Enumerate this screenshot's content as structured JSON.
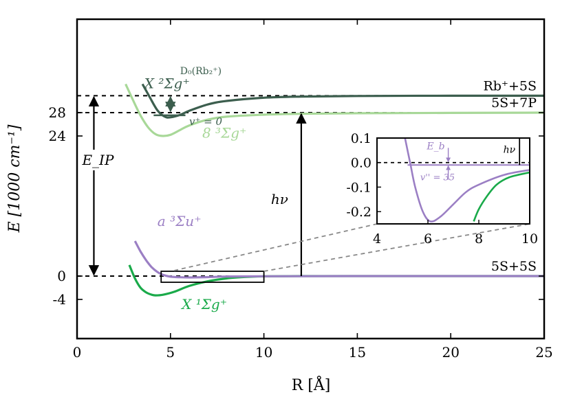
{
  "chart_data": [
    {
      "type": "line",
      "xlabel": "R [Å]",
      "ylabel": "E [1000 cm⁻¹]",
      "xlim": [
        0,
        25
      ],
      "ylim": [
        -4,
        32.5
      ],
      "x_ticks": [
        "0",
        "5",
        "10",
        "15",
        "20",
        "25"
      ],
      "y_ticks": [
        "-4",
        "0",
        "24",
        "28"
      ],
      "grid": false,
      "colors": {
        "X1Sg": "#1aaa4a",
        "a3Su": "#9b7fc4",
        "8_3Sg": "#a8d898",
        "X2Sg_ion": "#3c5e4e",
        "asymptote": "#000000"
      },
      "asymptotes": [
        {
          "label": "5S+5S",
          "y": 0
        },
        {
          "label": "5S+7P",
          "y": 28.0
        },
        {
          "label": "Rb⁺+5S",
          "y": 30.9
        }
      ],
      "series": [
        {
          "name": "X ¹Σg⁺",
          "color_key": "X1Sg",
          "x": [
            2.8,
            3.1,
            3.4,
            3.7,
            4.0,
            4.2,
            4.6,
            5.2,
            6.0,
            7.0,
            8.0,
            9.0,
            10.0,
            12.0,
            15.0,
            20.0,
            25.0
          ],
          "y": [
            1.9,
            -0.4,
            -2.0,
            -2.8,
            -3.2,
            -3.3,
            -3.2,
            -2.7,
            -1.7,
            -0.9,
            -0.4,
            -0.15,
            -0.05,
            0,
            0,
            0,
            0
          ]
        },
        {
          "name": "a ³Σu⁺",
          "color_key": "a3Su",
          "x": [
            3.1,
            3.4,
            3.7,
            4.0,
            4.3,
            4.6,
            5.0,
            5.5,
            6.1,
            7.0,
            8.0,
            10.0,
            15.0,
            25.0
          ],
          "y": [
            6.0,
            4.2,
            2.7,
            1.5,
            0.7,
            0.2,
            -0.1,
            -0.2,
            -0.23,
            -0.18,
            -0.08,
            -0.03,
            0,
            0
          ]
        },
        {
          "name": "8 ³Σg⁺",
          "color_key": "8_3Sg",
          "x": [
            2.6,
            3.0,
            3.4,
            3.8,
            4.2,
            4.6,
            5.0,
            5.5,
            6.0,
            7.0,
            8.0,
            10.0,
            12.0,
            15.0,
            20.0,
            25.0
          ],
          "y": [
            32.9,
            30.1,
            27.5,
            25.5,
            24.3,
            24.0,
            24.2,
            25.0,
            25.8,
            26.8,
            27.3,
            27.65,
            27.8,
            27.9,
            27.95,
            28.0
          ]
        },
        {
          "name": "X ²Σg⁺",
          "color_key": "X2Sg_ion",
          "x": [
            3.5,
            3.9,
            4.3,
            4.7,
            5.0,
            5.5,
            6.0,
            7.0,
            8.0,
            10.0,
            12.0,
            15.0,
            20.0,
            25.0
          ],
          "y": [
            32.9,
            30.6,
            28.4,
            27.3,
            27.2,
            27.6,
            28.3,
            29.4,
            30.0,
            30.55,
            30.75,
            30.85,
            30.9,
            30.9
          ]
        }
      ],
      "annotations": {
        "E_IP": "E_IP",
        "hv": "hν",
        "D0_label": "D₀(Rb₂⁺)",
        "vplus": "v⁺ = 0"
      },
      "zoom_box": {
        "x": [
          4.5,
          10
        ],
        "y": [
          -0.3,
          0.05
        ]
      }
    },
    {
      "type": "line",
      "title": "inset",
      "xlim": [
        4,
        10
      ],
      "ylim": [
        -0.25,
        0.1
      ],
      "x_ticks": [
        "4",
        "6",
        "8",
        "10"
      ],
      "y_ticks": [
        "0.1",
        "0.0",
        "-0.1",
        "-0.2"
      ],
      "series": [
        {
          "name": "a ³Σu⁺",
          "color_key": "a3Su",
          "x": [
            5.1,
            5.3,
            5.5,
            5.8,
            6.1,
            6.5,
            7.0,
            7.5,
            8.0,
            9.0,
            10.0
          ],
          "y": [
            0.1,
            0.0,
            -0.1,
            -0.2,
            -0.24,
            -0.22,
            -0.17,
            -0.12,
            -0.09,
            -0.05,
            -0.03
          ]
        },
        {
          "name": "X ¹Σg⁺",
          "color_key": "X1Sg",
          "x": [
            7.8,
            8.0,
            8.3,
            8.7,
            9.2,
            10.0
          ],
          "y": [
            -0.24,
            -0.19,
            -0.14,
            -0.09,
            -0.06,
            -0.04
          ]
        }
      ],
      "bound_level": {
        "label": "v'' = 35",
        "y": -0.01
      },
      "Eb_label": "E_b",
      "hv": "hν"
    }
  ]
}
